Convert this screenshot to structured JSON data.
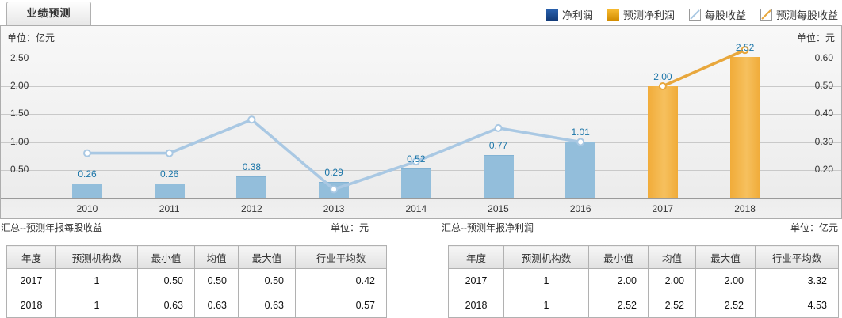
{
  "tab": {
    "label": "业绩预测"
  },
  "legend": {
    "items": [
      {
        "label": "净利润",
        "swatch": "square-navy"
      },
      {
        "label": "预测净利润",
        "swatch": "square-gold"
      },
      {
        "label": "每股收益",
        "swatch": "line-blue"
      },
      {
        "label": "预测每股收益",
        "swatch": "line-gold"
      }
    ]
  },
  "colors": {
    "navy": "#1a4a94",
    "gold": "#f0a500",
    "bar_blue": "#93bedb",
    "bar_gold": "#f3b44a",
    "line_blue": "#a9c8e3",
    "line_gold": "#e8a73c",
    "value_label": "#1b75a8"
  },
  "chart_data": {
    "type": "combo-bar-line",
    "categories": [
      "2010",
      "2011",
      "2012",
      "2013",
      "2014",
      "2015",
      "2016",
      "2017",
      "2018"
    ],
    "series": [
      {
        "name": "净利润",
        "type": "bar",
        "axis": "left",
        "color_key": "bar_blue",
        "values": [
          0.26,
          0.26,
          0.38,
          0.29,
          0.52,
          0.77,
          1.01,
          null,
          null
        ]
      },
      {
        "name": "预测净利润",
        "type": "bar",
        "axis": "left",
        "color_key": "bar_gold",
        "values": [
          null,
          null,
          null,
          null,
          null,
          null,
          null,
          2.0,
          2.52
        ]
      },
      {
        "name": "每股收益",
        "type": "line",
        "axis": "right",
        "color_key": "line_blue",
        "values": [
          0.26,
          0.26,
          0.38,
          0.13,
          0.23,
          0.35,
          0.3,
          null,
          null
        ]
      },
      {
        "name": "预测每股收益",
        "type": "line",
        "axis": "right",
        "color_key": "line_gold",
        "values": [
          null,
          null,
          null,
          null,
          null,
          null,
          null,
          0.5,
          0.63
        ]
      }
    ],
    "left_axis": {
      "unit": "单位：亿元",
      "ticks": [
        0.5,
        1.0,
        1.5,
        2.0,
        2.5
      ],
      "min": 0
    },
    "right_axis": {
      "unit": "单位：元",
      "ticks": [
        0.2,
        0.3,
        0.4,
        0.5,
        0.6
      ],
      "min": 0.1
    },
    "grid": true,
    "bar_value_labels_shown": [
      "0.26",
      "0.26",
      "0.38",
      "0.29",
      "0.52",
      "0.77",
      "1.01",
      "2.00",
      "2.52"
    ]
  },
  "tables": [
    {
      "title": "汇总--预测年报每股收益",
      "unit": "单位：元",
      "headers": [
        "年度",
        "预测机构数",
        "最小值",
        "均值",
        "最大值",
        "行业平均数"
      ],
      "rows": [
        [
          "2017",
          "1",
          "0.50",
          "0.50",
          "0.50",
          "0.42"
        ],
        [
          "2018",
          "1",
          "0.63",
          "0.63",
          "0.63",
          "0.57"
        ]
      ]
    },
    {
      "title": "汇总--预测年报净利润",
      "unit": "单位：亿元",
      "headers": [
        "年度",
        "预测机构数",
        "最小值",
        "均值",
        "最大值",
        "行业平均数"
      ],
      "rows": [
        [
          "2017",
          "1",
          "2.00",
          "2.00",
          "2.00",
          "3.32"
        ],
        [
          "2018",
          "1",
          "2.52",
          "2.52",
          "2.52",
          "4.53"
        ]
      ]
    }
  ]
}
